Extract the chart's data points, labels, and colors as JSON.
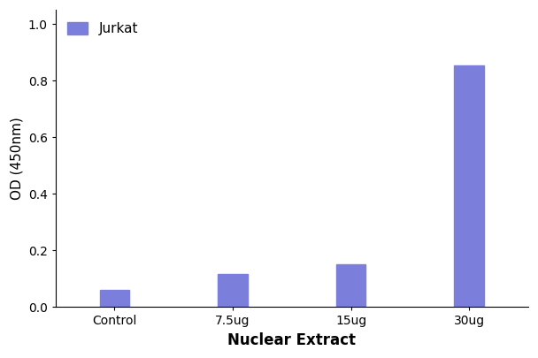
{
  "categories": [
    "Control",
    "7.5ug",
    "15ug",
    "30ug"
  ],
  "values": [
    0.06,
    0.115,
    0.15,
    0.855
  ],
  "bar_color": "#7b7fdb",
  "xlabel": "Nuclear Extract",
  "ylabel": "OD (450nm)",
  "ylim": [
    0,
    1.05
  ],
  "yticks": [
    0.0,
    0.2,
    0.4,
    0.6,
    0.8,
    1.0
  ],
  "legend_label": "Jurkat",
  "legend_color": "#7b7fdb",
  "bar_width": 0.25,
  "xlabel_fontsize": 12,
  "ylabel_fontsize": 11,
  "tick_fontsize": 10,
  "legend_fontsize": 11,
  "background_color": "#ffffff"
}
